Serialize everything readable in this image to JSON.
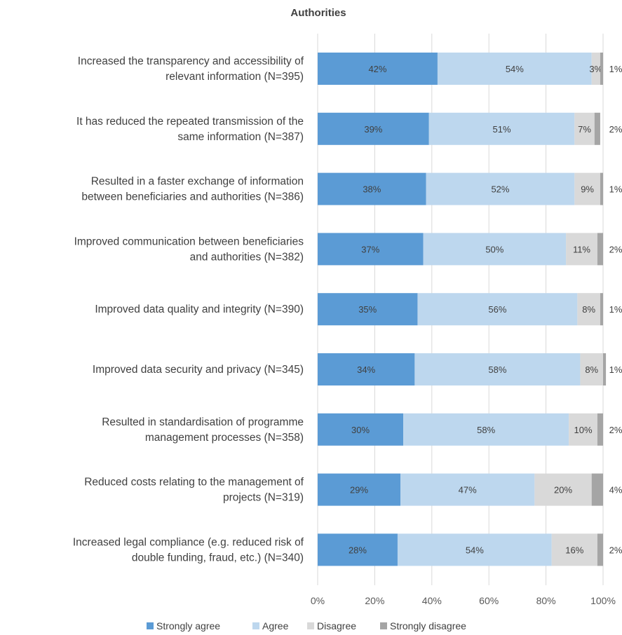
{
  "chart_data": {
    "type": "bar",
    "orientation": "horizontal",
    "stacked": true,
    "title": "Authorities",
    "categories": [
      [
        "Increased the transparency and accessibility of",
        "relevant information (N=395)"
      ],
      [
        "It has reduced the repeated transmission of the",
        "same information (N=387)"
      ],
      [
        "Resulted in a faster exchange of information",
        "between beneficiaries and authorities (N=386)"
      ],
      [
        "Improved communication between beneficiaries",
        "and authorities (N=382)"
      ],
      [
        "Improved data quality and integrity (N=390)"
      ],
      [
        "Improved data security and privacy (N=345)"
      ],
      [
        "Resulted in standardisation of programme",
        "management processes (N=358)"
      ],
      [
        "Reduced costs relating to the management of",
        "projects (N=319)"
      ],
      [
        "Increased legal compliance (e.g. reduced risk of",
        "double funding, fraud, etc.) (N=340)"
      ]
    ],
    "series": [
      {
        "name": "Strongly agree",
        "color": "#5b9bd5",
        "values": [
          42,
          39,
          38,
          37,
          35,
          34,
          30,
          29,
          28
        ]
      },
      {
        "name": "Agree",
        "color": "#bdd7ee",
        "values": [
          54,
          51,
          52,
          50,
          56,
          58,
          58,
          47,
          54
        ]
      },
      {
        "name": "Disagree",
        "color": "#d9d9d9",
        "values": [
          3,
          7,
          9,
          11,
          8,
          8,
          10,
          20,
          16
        ]
      },
      {
        "name": "Strongly disagree",
        "color": "#a5a5a5",
        "values": [
          1,
          2,
          1,
          2,
          1,
          1,
          2,
          4,
          2
        ]
      }
    ],
    "xlim": [
      0,
      100
    ],
    "xticks": [
      "0%",
      "20%",
      "40%",
      "60%",
      "80%",
      "100%"
    ],
    "grid": true,
    "legend": "bottom"
  }
}
